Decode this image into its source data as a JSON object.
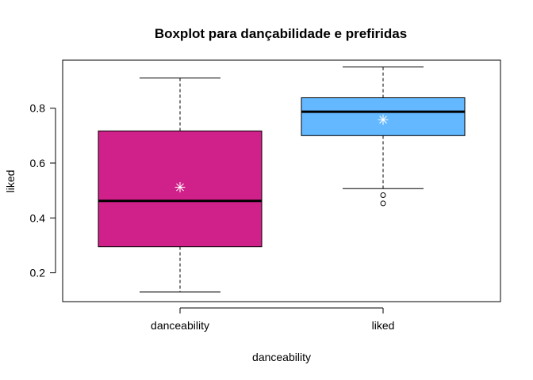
{
  "chart_data": {
    "type": "boxplot",
    "title": "Boxplot para  dançabilidade e prefiridas",
    "xlabel": "danceability",
    "ylabel": "liked",
    "ylim": [
      0.095,
      0.975
    ],
    "yticks": [
      0.2,
      0.4,
      0.6,
      0.8
    ],
    "ytick_labels": [
      "0.2",
      "0.4",
      "0.6",
      "0.8"
    ],
    "categories": [
      "danceability",
      "liked"
    ],
    "series": [
      {
        "category": "danceability",
        "color": "#D0208A",
        "whisker_low": 0.13,
        "q1": 0.295,
        "median": 0.462,
        "q3": 0.717,
        "whisker_high": 0.91,
        "mean": 0.512,
        "outliers": []
      },
      {
        "category": "liked",
        "color": "#63B8FF",
        "whisker_low": 0.507,
        "q1": 0.7,
        "median": 0.787,
        "q3": 0.838,
        "whisker_high": 0.95,
        "mean": 0.758,
        "outliers": [
          0.483,
          0.453
        ]
      }
    ],
    "mean_marker_color": "#FFFFFF",
    "grid": false,
    "legend": "none"
  }
}
